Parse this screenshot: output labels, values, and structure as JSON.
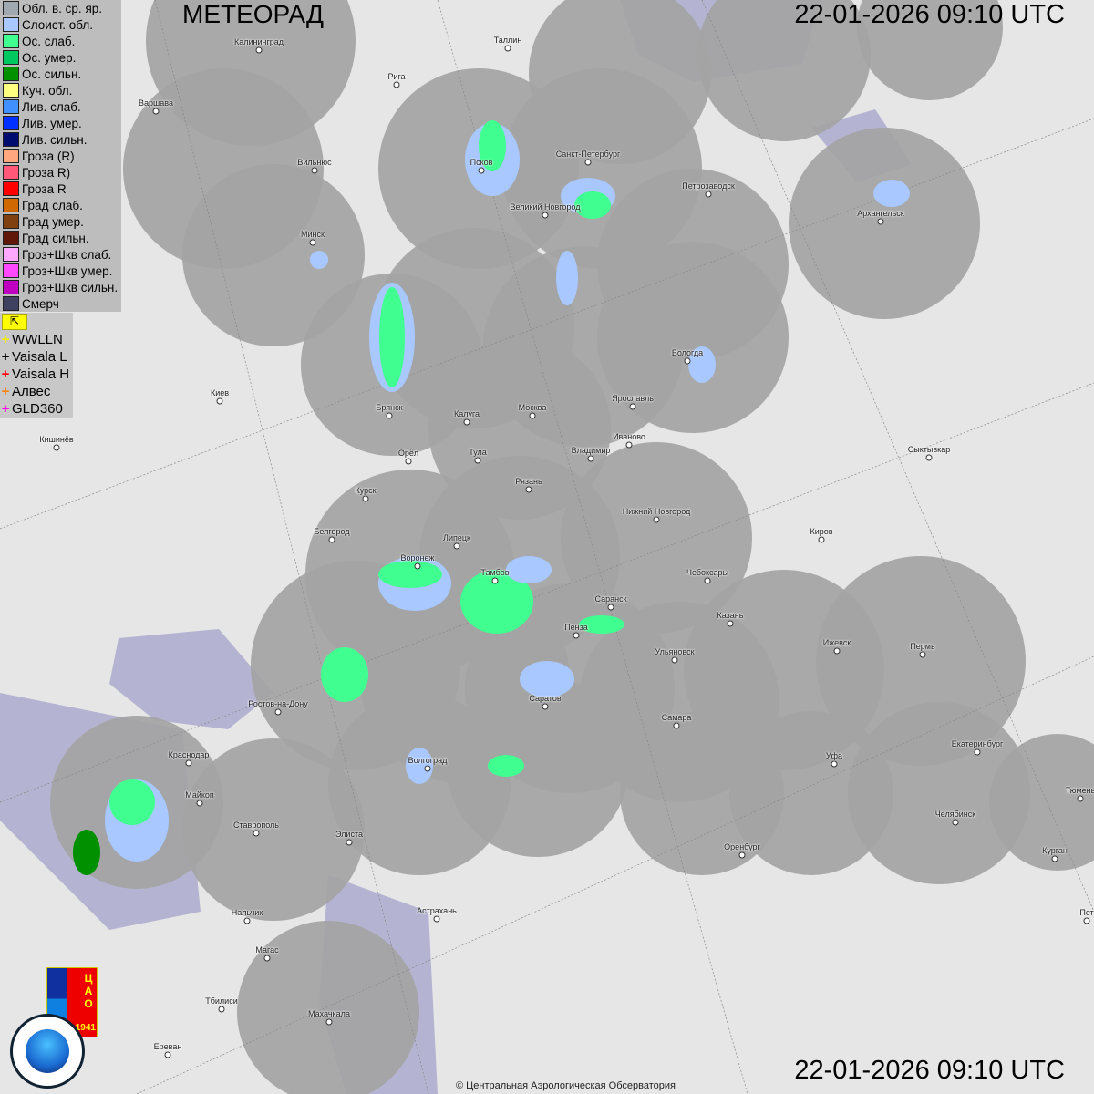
{
  "header": {
    "title": "МЕТЕОРАД",
    "timestamp": "22-01-2026  09:10 UTC"
  },
  "footer": {
    "copyright": "© Центральная Аэрологическая Обсерватория"
  },
  "legend": {
    "items": [
      {
        "label": "Обл. в. ср. яр.",
        "color": "#a0a8b0"
      },
      {
        "label": "Слоист. обл.",
        "color": "#a8c8ff"
      },
      {
        "label": "Ос. слаб.",
        "color": "#40ff90"
      },
      {
        "label": "Ос. умер.",
        "color": "#00c860"
      },
      {
        "label": "Ос. сильн.",
        "color": "#009000"
      },
      {
        "label": "Куч. обл.",
        "color": "#ffff80"
      },
      {
        "label": "Лив. слаб.",
        "color": "#4090ff"
      },
      {
        "label": "Лив. умер.",
        "color": "#0030ff"
      },
      {
        "label": "Лив. сильн.",
        "color": "#000c70"
      },
      {
        "label": "Гроза (R)",
        "color": "#ffa880"
      },
      {
        "label": "Гроза R)",
        "color": "#ff5878"
      },
      {
        "label": "Гроза R",
        "color": "#ff0000"
      },
      {
        "label": "Град слаб.",
        "color": "#d06800"
      },
      {
        "label": "Град умер.",
        "color": "#804010"
      },
      {
        "label": "Град сильн.",
        "color": "#601808"
      },
      {
        "label": "Гроз+Шкв слаб.",
        "color": "#ffa8ff"
      },
      {
        "label": "Гроз+Шкв умер.",
        "color": "#ff48ff"
      },
      {
        "label": "Гроз+Шкв сильн.",
        "color": "#c000c0"
      },
      {
        "label": "Смерч",
        "color": "#404060"
      }
    ],
    "lightning": [
      {
        "label": "WWLLN",
        "color": "#ffee00"
      },
      {
        "label": "Vaisala L",
        "color": "#000000"
      },
      {
        "label": "Vaisala H",
        "color": "#ff0000"
      },
      {
        "label": "Алвес",
        "color": "#ff8000"
      },
      {
        "label": "GLD360",
        "color": "#ff00ff"
      }
    ]
  },
  "cities": [
    "Калининград",
    "Таллин",
    "Рига",
    "Варшава",
    "Вильнюс",
    "Псков",
    "Санкт-Петербург",
    "Петрозаводск",
    "Архангельск",
    "Великий Новгород",
    "Минск",
    "Вологда",
    "Киев",
    "Брянск",
    "Калуга",
    "Москва",
    "Ярославль",
    "Иваново",
    "Кишинёв",
    "Орёл",
    "Тула",
    "Владимир",
    "Сыктывкар",
    "Рязань",
    "Курск",
    "Нижний Новгород",
    "Белгород",
    "Липецк",
    "Киров",
    "Воронеж",
    "Тамбов",
    "Чебоксары",
    "Саранск",
    "Казань",
    "Пенза",
    "Ижевск",
    "Пермь",
    "Ульяновск",
    "Ростов-на-Дону",
    "Саратов",
    "Самара",
    "Краснодар",
    "Волгоград",
    "Уфа",
    "Екатеринбург",
    "Тюмень",
    "Майкоп",
    "Челябинск",
    "Ставрополь",
    "Элиста",
    "Оренбург",
    "Курган",
    "Астрахань",
    "Нальчик",
    "Магас",
    "Махачкала",
    "Тбилиси",
    "Ереван",
    "Пет"
  ],
  "logos": {
    "cao": "ЦАО 1941",
    "roshydromet": "РОСГИДРОМЕТ ROSHYDROMET"
  }
}
